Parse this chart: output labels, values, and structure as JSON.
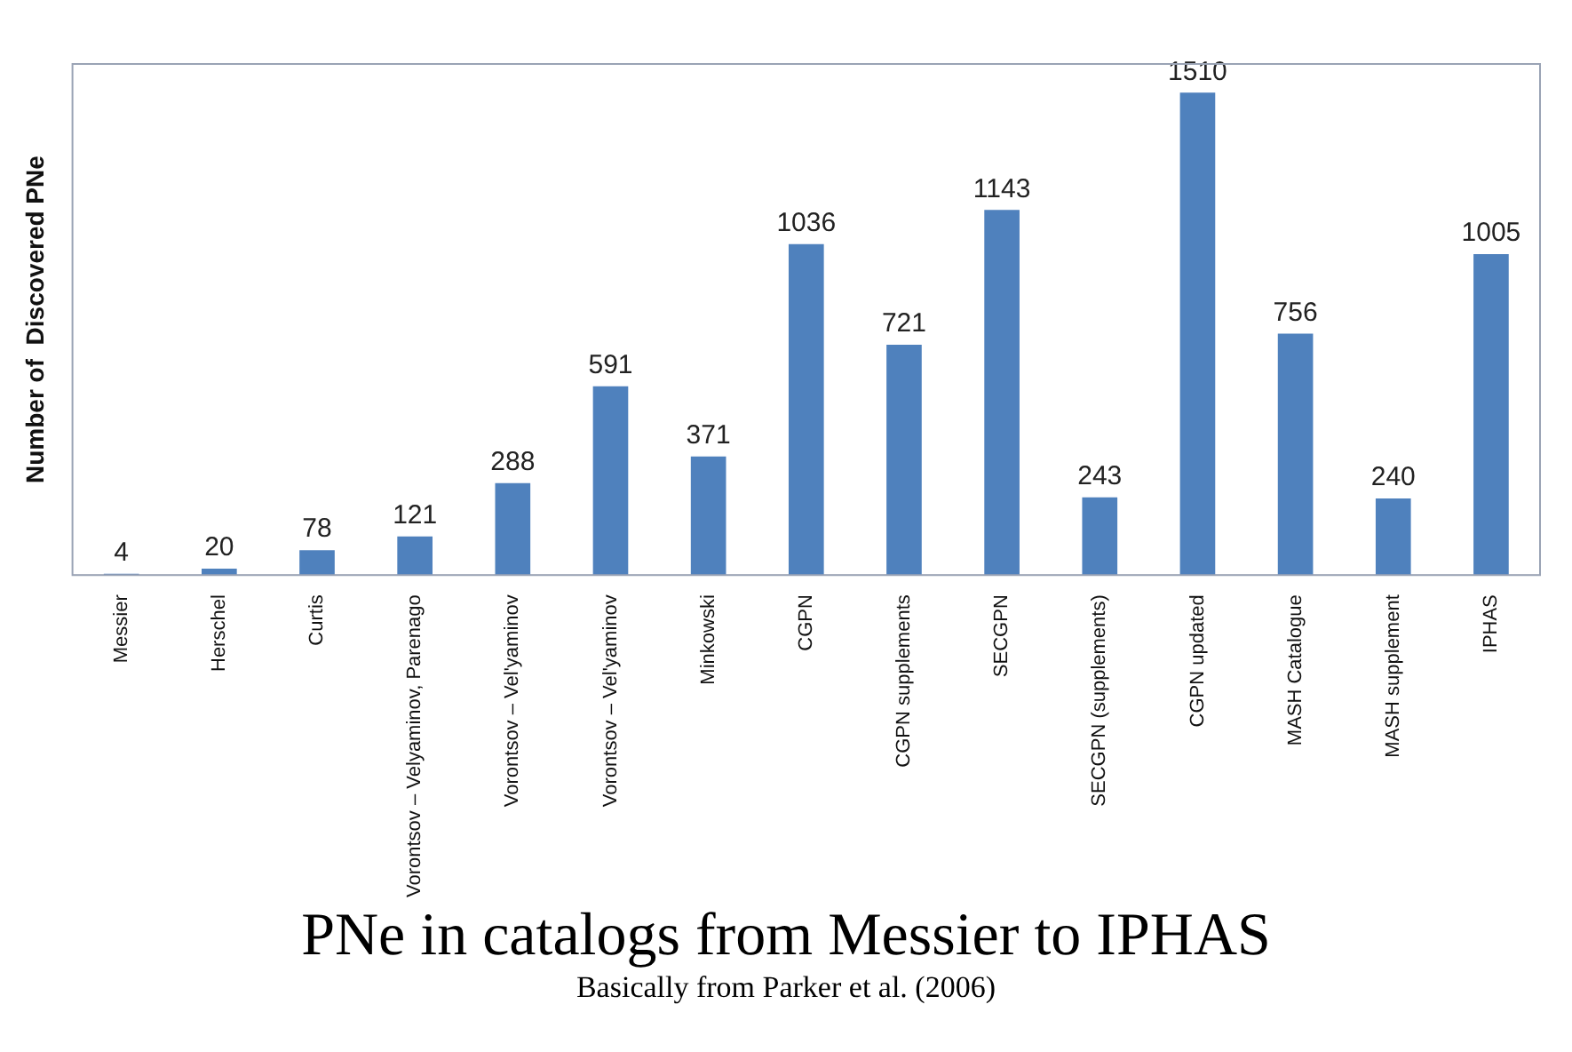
{
  "chart_data": {
    "type": "bar",
    "title": "PNe in catalogs from Messier to IPHAS",
    "ylabel": "Number of  Discovered PNe",
    "annotations": [
      "Basically from Parker et al. (2006)"
    ],
    "categories": [
      "Messier",
      "Herschel",
      "Curtis",
      "Vorontsov – Velyaminov, Parenago",
      "Vorontsov – Vel'yaminov",
      "Vorontsov – Vel'yaminov",
      "Minkowski",
      "CGPN",
      "CGPN supplements",
      "SECGPN",
      "SECGPN (supplements)",
      "CGPN updated",
      "MASH Catalogue",
      "MASH supplement",
      "IPHAS"
    ],
    "values": [
      4,
      20,
      78,
      121,
      288,
      591,
      371,
      1036,
      721,
      1143,
      243,
      1510,
      756,
      240,
      1005
    ],
    "color": "#4f81bd",
    "data_labels": true,
    "grid": false,
    "legend": false
  }
}
